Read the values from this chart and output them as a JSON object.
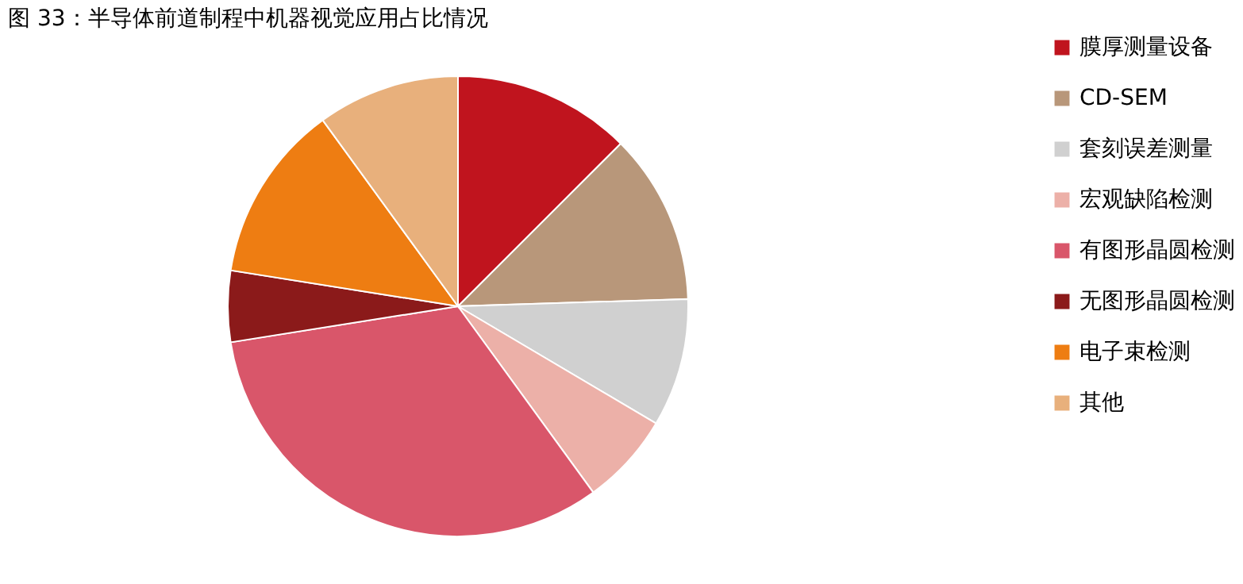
{
  "chart_data": {
    "type": "pie",
    "title": "图 33：半导体前道制程中机器视觉应用占比情况",
    "categories": [
      "膜厚测量设备",
      "CD-SEM",
      "套刻误差测量",
      "宏观缺陷检测",
      "有图形晶圆检测",
      "无图形晶圆检测",
      "电子束检测",
      "其他"
    ],
    "values": [
      12.5,
      12,
      9,
      6.5,
      32.5,
      5,
      12.5,
      10
    ],
    "colors": [
      "#c0141e",
      "#b8977a",
      "#d0d0d0",
      "#ecb0a8",
      "#d9566a",
      "#8b1a1a",
      "#ee7d12",
      "#e8b07c"
    ],
    "legend": "right"
  }
}
